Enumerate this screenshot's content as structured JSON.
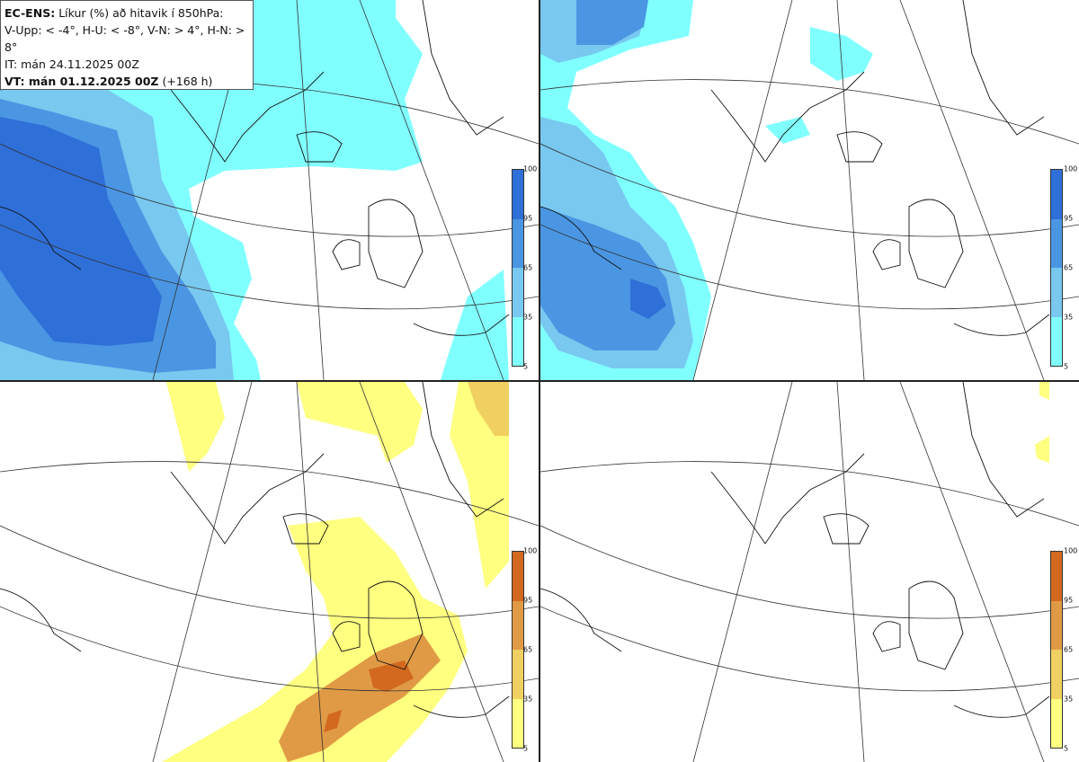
{
  "infobox": {
    "model": "EC-ENS:",
    "title_rest": "Líkur (%) að hitavik í 850hPa:",
    "thresholds": "V-Upp: < -4°, H-U: < -8°, V-N: > 4°, H-N: > 8°",
    "init_time": "IT: mán 24.11.2025 00Z",
    "valid_label": "VT: mán 01.12.2025 00Z",
    "lead": "(+168 h)"
  },
  "colorbars": {
    "ticks": [
      "100",
      "95",
      "65",
      "35",
      "5"
    ],
    "cold": [
      "#2f6fd8",
      "#4a96e3",
      "#78c8ef",
      "#80ffff"
    ],
    "warm": [
      "#d2691e",
      "#e09a45",
      "#f0d060",
      "#ffff80"
    ]
  },
  "panels": [
    {
      "id": "cold-minus4",
      "scheme": "cold",
      "levels": [
        "#80ffff",
        "#78c8ef",
        "#4a96e3",
        "#2f6fd8"
      ]
    },
    {
      "id": "cold-minus8",
      "scheme": "cold",
      "levels": [
        "#80ffff",
        "#78c8ef",
        "#4a96e3",
        "#2f6fd8"
      ]
    },
    {
      "id": "warm-plus4",
      "scheme": "warm",
      "levels": [
        "#ffff80",
        "#f0d060",
        "#e09a45",
        "#d2691e"
      ]
    },
    {
      "id": "warm-plus8",
      "scheme": "warm",
      "levels": [
        "#ffff80",
        "#f0d060",
        "#e09a45",
        "#d2691e"
      ]
    }
  ]
}
